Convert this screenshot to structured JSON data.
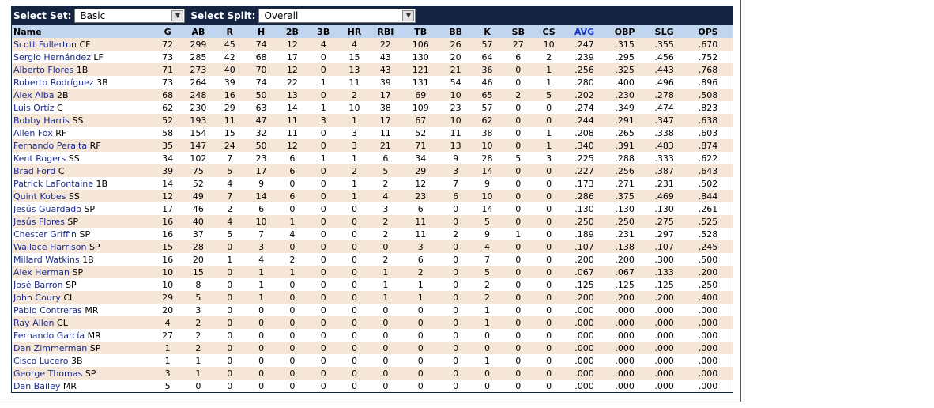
{
  "controls": {
    "set_label": "Select Set:",
    "set_value": "Basic",
    "split_label": "Select Split:",
    "split_value": "Overall"
  },
  "columns": [
    "Name",
    "G",
    "AB",
    "R",
    "H",
    "2B",
    "3B",
    "HR",
    "RBI",
    "TB",
    "BB",
    "K",
    "SB",
    "CS",
    "AVG",
    "OBP",
    "SLG",
    "OPS"
  ],
  "rows": [
    {
      "name": "Scott Fullerton",
      "pos": "CF",
      "stats": [
        "72",
        "299",
        "45",
        "74",
        "12",
        "4",
        "4",
        "22",
        "106",
        "26",
        "57",
        "27",
        "10",
        ".247",
        ".315",
        ".355",
        ".670"
      ]
    },
    {
      "name": "Sergio Hernández",
      "pos": "LF",
      "stats": [
        "73",
        "285",
        "42",
        "68",
        "17",
        "0",
        "15",
        "43",
        "130",
        "20",
        "64",
        "6",
        "2",
        ".239",
        ".295",
        ".456",
        ".752"
      ]
    },
    {
      "name": "Alberto Flores",
      "pos": "1B",
      "stats": [
        "71",
        "273",
        "40",
        "70",
        "12",
        "0",
        "13",
        "43",
        "121",
        "21",
        "36",
        "0",
        "1",
        ".256",
        ".325",
        ".443",
        ".768"
      ]
    },
    {
      "name": "Roberto Rodríguez",
      "pos": "3B",
      "stats": [
        "73",
        "264",
        "39",
        "74",
        "22",
        "1",
        "11",
        "39",
        "131",
        "54",
        "46",
        "0",
        "1",
        ".280",
        ".400",
        ".496",
        ".896"
      ]
    },
    {
      "name": "Alex Alba",
      "pos": "2B",
      "stats": [
        "68",
        "248",
        "16",
        "50",
        "13",
        "0",
        "2",
        "17",
        "69",
        "10",
        "65",
        "2",
        "5",
        ".202",
        ".230",
        ".278",
        ".508"
      ]
    },
    {
      "name": "Luis Ortíz",
      "pos": "C",
      "stats": [
        "62",
        "230",
        "29",
        "63",
        "14",
        "1",
        "10",
        "38",
        "109",
        "23",
        "57",
        "0",
        "0",
        ".274",
        ".349",
        ".474",
        ".823"
      ]
    },
    {
      "name": "Bobby Harris",
      "pos": "SS",
      "stats": [
        "52",
        "193",
        "11",
        "47",
        "11",
        "3",
        "1",
        "17",
        "67",
        "10",
        "62",
        "0",
        "0",
        ".244",
        ".291",
        ".347",
        ".638"
      ]
    },
    {
      "name": "Allen Fox",
      "pos": "RF",
      "stats": [
        "58",
        "154",
        "15",
        "32",
        "11",
        "0",
        "3",
        "11",
        "52",
        "11",
        "38",
        "0",
        "1",
        ".208",
        ".265",
        ".338",
        ".603"
      ]
    },
    {
      "name": "Fernando Peralta",
      "pos": "RF",
      "stats": [
        "35",
        "147",
        "24",
        "50",
        "12",
        "0",
        "3",
        "21",
        "71",
        "13",
        "10",
        "0",
        "1",
        ".340",
        ".391",
        ".483",
        ".874"
      ]
    },
    {
      "name": "Kent Rogers",
      "pos": "SS",
      "stats": [
        "34",
        "102",
        "7",
        "23",
        "6",
        "1",
        "1",
        "6",
        "34",
        "9",
        "28",
        "5",
        "3",
        ".225",
        ".288",
        ".333",
        ".622"
      ]
    },
    {
      "name": "Brad Ford",
      "pos": "C",
      "stats": [
        "39",
        "75",
        "5",
        "17",
        "6",
        "0",
        "2",
        "5",
        "29",
        "3",
        "14",
        "0",
        "0",
        ".227",
        ".256",
        ".387",
        ".643"
      ]
    },
    {
      "name": "Patrick LaFontaine",
      "pos": "1B",
      "stats": [
        "14",
        "52",
        "4",
        "9",
        "0",
        "0",
        "1",
        "2",
        "12",
        "7",
        "9",
        "0",
        "0",
        ".173",
        ".271",
        ".231",
        ".502"
      ]
    },
    {
      "name": "Quint Kobes",
      "pos": "SS",
      "stats": [
        "12",
        "49",
        "7",
        "14",
        "6",
        "0",
        "1",
        "4",
        "23",
        "6",
        "10",
        "0",
        "0",
        ".286",
        ".375",
        ".469",
        ".844"
      ]
    },
    {
      "name": "Jesús Guardado",
      "pos": "SP",
      "stats": [
        "17",
        "46",
        "2",
        "6",
        "0",
        "0",
        "0",
        "3",
        "6",
        "0",
        "14",
        "0",
        "0",
        ".130",
        ".130",
        ".130",
        ".261"
      ]
    },
    {
      "name": "Jesús Flores",
      "pos": "SP",
      "stats": [
        "16",
        "40",
        "4",
        "10",
        "1",
        "0",
        "0",
        "2",
        "11",
        "0",
        "5",
        "0",
        "0",
        ".250",
        ".250",
        ".275",
        ".525"
      ]
    },
    {
      "name": "Chester Griffin",
      "pos": "SP",
      "stats": [
        "16",
        "37",
        "5",
        "7",
        "4",
        "0",
        "0",
        "2",
        "11",
        "2",
        "9",
        "1",
        "0",
        ".189",
        ".231",
        ".297",
        ".528"
      ]
    },
    {
      "name": "Wallace Harrison",
      "pos": "SP",
      "stats": [
        "15",
        "28",
        "0",
        "3",
        "0",
        "0",
        "0",
        "0",
        "3",
        "0",
        "4",
        "0",
        "0",
        ".107",
        ".138",
        ".107",
        ".245"
      ]
    },
    {
      "name": "Millard Watkins",
      "pos": "1B",
      "stats": [
        "16",
        "20",
        "1",
        "4",
        "2",
        "0",
        "0",
        "2",
        "6",
        "0",
        "7",
        "0",
        "0",
        ".200",
        ".200",
        ".300",
        ".500"
      ]
    },
    {
      "name": "Alex Herman",
      "pos": "SP",
      "stats": [
        "10",
        "15",
        "0",
        "1",
        "1",
        "0",
        "0",
        "1",
        "2",
        "0",
        "5",
        "0",
        "0",
        ".067",
        ".067",
        ".133",
        ".200"
      ]
    },
    {
      "name": "José Barrón",
      "pos": "SP",
      "stats": [
        "10",
        "8",
        "0",
        "1",
        "0",
        "0",
        "0",
        "1",
        "1",
        "0",
        "2",
        "0",
        "0",
        ".125",
        ".125",
        ".125",
        ".250"
      ]
    },
    {
      "name": "John Coury",
      "pos": "CL",
      "stats": [
        "29",
        "5",
        "0",
        "1",
        "0",
        "0",
        "0",
        "1",
        "1",
        "0",
        "2",
        "0",
        "0",
        ".200",
        ".200",
        ".200",
        ".400"
      ]
    },
    {
      "name": "Pablo Contreras",
      "pos": "MR",
      "stats": [
        "20",
        "3",
        "0",
        "0",
        "0",
        "0",
        "0",
        "0",
        "0",
        "0",
        "1",
        "0",
        "0",
        ".000",
        ".000",
        ".000",
        ".000"
      ]
    },
    {
      "name": "Ray Allen",
      "pos": "CL",
      "stats": [
        "4",
        "2",
        "0",
        "0",
        "0",
        "0",
        "0",
        "0",
        "0",
        "0",
        "1",
        "0",
        "0",
        ".000",
        ".000",
        ".000",
        ".000"
      ]
    },
    {
      "name": "Fernando García",
      "pos": "MR",
      "stats": [
        "27",
        "2",
        "0",
        "0",
        "0",
        "0",
        "0",
        "0",
        "0",
        "0",
        "0",
        "0",
        "0",
        ".000",
        ".000",
        ".000",
        ".000"
      ]
    },
    {
      "name": "Dan Zimmerman",
      "pos": "SP",
      "stats": [
        "1",
        "2",
        "0",
        "0",
        "0",
        "0",
        "0",
        "0",
        "0",
        "0",
        "0",
        "0",
        "0",
        ".000",
        ".000",
        ".000",
        ".000"
      ]
    },
    {
      "name": "Cisco Lucero",
      "pos": "3B",
      "stats": [
        "1",
        "1",
        "0",
        "0",
        "0",
        "0",
        "0",
        "0",
        "0",
        "0",
        "1",
        "0",
        "0",
        ".000",
        ".000",
        ".000",
        ".000"
      ]
    },
    {
      "name": "George Thomas",
      "pos": "SP",
      "stats": [
        "3",
        "1",
        "0",
        "0",
        "0",
        "0",
        "0",
        "0",
        "0",
        "0",
        "0",
        "0",
        "0",
        ".000",
        ".000",
        ".000",
        ".000"
      ]
    },
    {
      "name": "Dan Bailey",
      "pos": "MR",
      "stats": [
        "5",
        "0",
        "0",
        "0",
        "0",
        "0",
        "0",
        "0",
        "0",
        "0",
        "0",
        "0",
        "0",
        ".000",
        ".000",
        ".000",
        ".000"
      ]
    }
  ],
  "colors": {
    "toolbar_bg": "#142441",
    "header_bg": "#c2d5ee",
    "row_alt_bg": "#f6e6d8",
    "link": "#1a2c8c",
    "sorted_header": "#1a35c9"
  },
  "icons": {
    "dropdown": "chevron-down-icon"
  }
}
